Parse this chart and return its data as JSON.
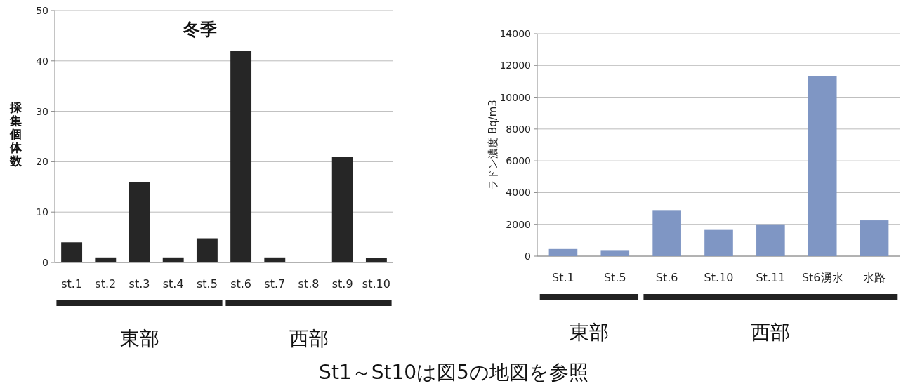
{
  "chart_data": [
    {
      "type": "bar",
      "title": "冬季",
      "ylabel": "採集個体数",
      "categories": [
        "st.1",
        "st.2",
        "st.3",
        "st.4",
        "st.5",
        "st.6",
        "st.7",
        "st.8",
        "st.9",
        "st.10"
      ],
      "values": [
        4,
        1,
        16,
        1,
        4.8,
        42,
        1,
        0,
        21,
        0.9
      ],
      "color": "#262626",
      "ylim": [
        0,
        50
      ],
      "yticks": [
        0,
        10,
        20,
        30,
        40,
        50
      ],
      "grid": "y",
      "annotations": [
        "東部",
        "西部",
        "St1～St10は図5の地図を参照"
      ]
    },
    {
      "type": "bar",
      "ylabel": "ラドン濃度  Bq/m3",
      "categories": [
        "St.1",
        "St.5",
        "St.6",
        "St.10",
        "St.11",
        "St6湧水",
        "水路"
      ],
      "values": [
        450,
        380,
        2900,
        1650,
        2000,
        11350,
        2250
      ],
      "color": "#7f96c4",
      "ylim": [
        0,
        14000
      ],
      "yticks": [
        0,
        2000,
        4000,
        6000,
        8000,
        10000,
        12000,
        14000
      ],
      "grid": "y",
      "annotations": [
        "東部",
        "西部"
      ]
    }
  ]
}
